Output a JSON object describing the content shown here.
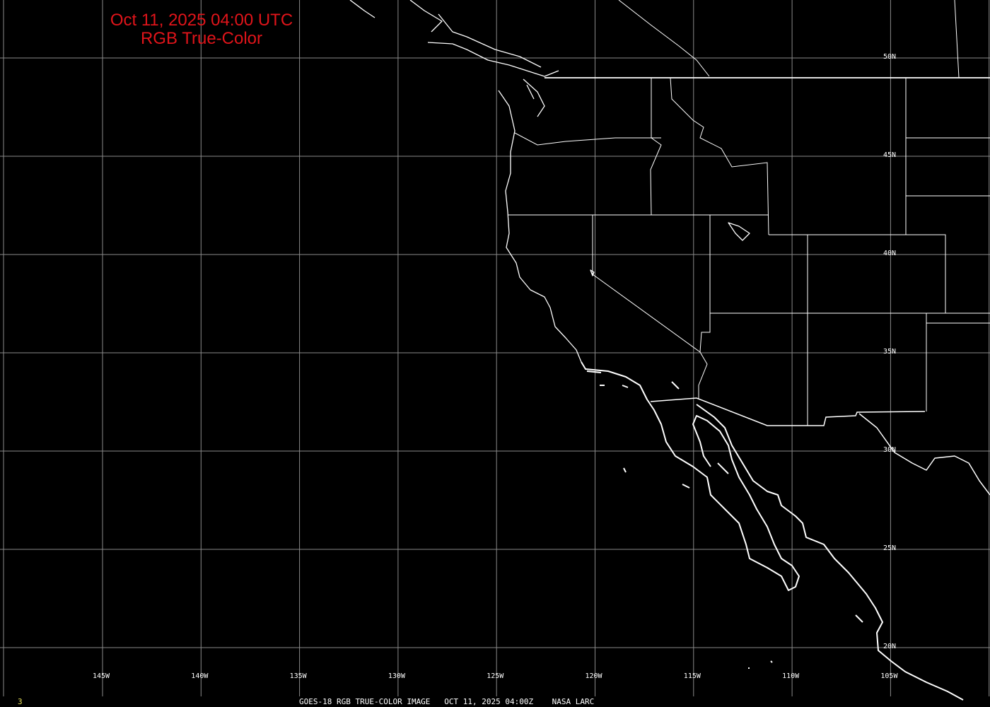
{
  "title": {
    "line1": "Oct 11, 2025 04:00 UTC",
    "line2": "RGB True-Color"
  },
  "longitude_labels": [
    "145W",
    "140W",
    "135W",
    "130W",
    "125W",
    "120W",
    "115W",
    "110W",
    "105W"
  ],
  "latitude_labels": [
    "50N",
    "45N",
    "40N",
    "35N",
    "30N",
    "25N",
    "20N"
  ],
  "footer": {
    "frame_number": "3",
    "caption": "GOES-18 RGB TRUE-COLOR IMAGE   OCT 11, 2025 04:00Z    NASA LARC"
  },
  "colors": {
    "background": "#000000",
    "title": "#e0141a",
    "grid": "#8a8a8a",
    "coastline": "#ffffff",
    "frame_number": "#e6e05a"
  }
}
